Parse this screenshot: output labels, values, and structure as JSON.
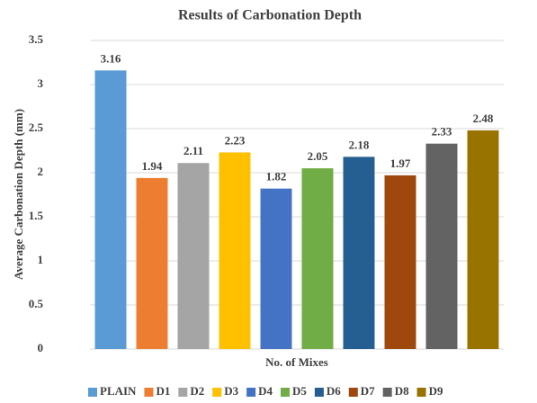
{
  "chart_data": {
    "type": "bar",
    "title": "Results of Carbonation Depth",
    "x_label": "No. of Mixes",
    "y_label": "Average Carbonation Depth (mm)",
    "categories": [
      "PLAIN",
      "D1",
      "D2",
      "D3",
      "D4",
      "D5",
      "D6",
      "D7",
      "D8",
      "D9"
    ],
    "values": [
      3.16,
      1.94,
      2.11,
      2.23,
      1.82,
      2.05,
      2.18,
      1.97,
      2.33,
      2.48
    ],
    "colors": [
      "#5b9bd5",
      "#ed7d31",
      "#a5a5a5",
      "#ffc000",
      "#4472c4",
      "#70ad47",
      "#255e91",
      "#9e480e",
      "#636363",
      "#997300"
    ],
    "ylim": [
      0,
      3.5
    ],
    "yticks": [
      0,
      0.5,
      1,
      1.5,
      2,
      2.5,
      3,
      3.5
    ],
    "grid": true,
    "legend": "bottom"
  }
}
